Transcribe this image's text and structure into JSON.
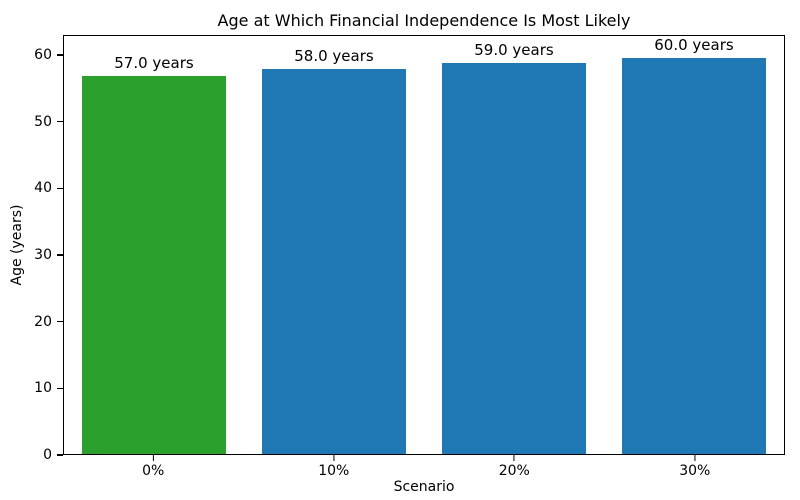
{
  "chart_data": {
    "type": "bar",
    "title": "Age at Which Financial Independence Is Most Likely",
    "xlabel": "Scenario",
    "ylabel": "Age (years)",
    "categories": [
      "0%",
      "10%",
      "20%",
      "30%"
    ],
    "values": [
      57.0,
      58.0,
      59.0,
      60.0
    ],
    "bar_labels": [
      "57.0 years",
      "58.0 years",
      "59.0 years",
      "60.0 years"
    ],
    "colors": [
      "#2ca02c",
      "#1f77b4",
      "#1f77b4",
      "#1f77b4"
    ],
    "ylim": [
      0,
      63
    ],
    "yticks": [
      0,
      10,
      20,
      30,
      40,
      50,
      60
    ],
    "grid": false,
    "legend": "none",
    "frame": "full-box",
    "background_color": "#ffffff",
    "text_color": "#000000"
  }
}
